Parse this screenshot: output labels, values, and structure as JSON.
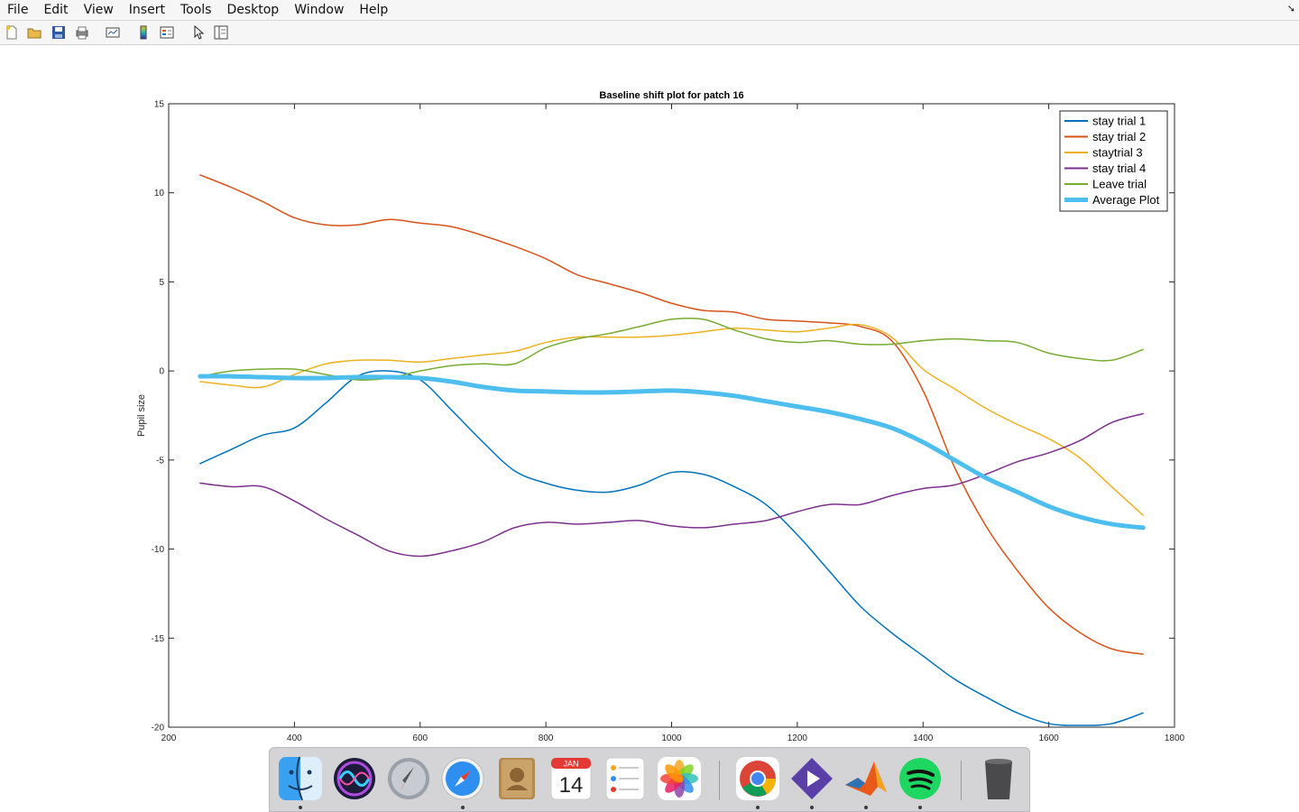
{
  "menubar": {
    "items": [
      "File",
      "Edit",
      "View",
      "Insert",
      "Tools",
      "Desktop",
      "Window",
      "Help"
    ],
    "arrow_icon": "dock-arrow-icon"
  },
  "toolbar": {
    "buttons": [
      "new-figure-icon",
      "open-file-icon",
      "save-icon",
      "print-icon",
      "link-plot-icon",
      "insert-colorbar-icon",
      "insert-legend-icon",
      "edit-plot-pointer-icon",
      "property-inspector-icon"
    ]
  },
  "chart_data": {
    "type": "line",
    "title": "Baseline shift plot for patch 16",
    "xlabel": "",
    "ylabel": "Pupil size",
    "xlim": [
      200,
      1800
    ],
    "ylim": [
      -20,
      15
    ],
    "xticks": [
      200,
      400,
      600,
      800,
      1000,
      1200,
      1400,
      1600,
      1800
    ],
    "yticks": [
      -20,
      -15,
      -10,
      -5,
      0,
      5,
      10,
      15
    ],
    "grid": false,
    "legend_position": "top-right",
    "x": [
      250,
      300,
      350,
      400,
      450,
      500,
      550,
      600,
      650,
      700,
      750,
      800,
      850,
      900,
      950,
      1000,
      1050,
      1100,
      1150,
      1200,
      1250,
      1300,
      1350,
      1400,
      1450,
      1500,
      1550,
      1600,
      1650,
      1700,
      1750
    ],
    "series": [
      {
        "name": "stay trial 1",
        "color": "#0072BD",
        "width": 1.5,
        "values": [
          -5.2,
          -4.4,
          -3.6,
          -3.2,
          -1.8,
          -0.3,
          0.0,
          -0.5,
          -2.2,
          -4.0,
          -5.6,
          -6.3,
          -6.7,
          -6.8,
          -6.4,
          -5.7,
          -5.8,
          -6.5,
          -7.5,
          -9.2,
          -11.2,
          -13.2,
          -14.7,
          -16.0,
          -17.3,
          -18.3,
          -19.2,
          -19.8,
          -19.9,
          -19.8,
          -19.2
        ]
      },
      {
        "name": "stay trial 2",
        "color": "#D95319",
        "width": 1.5,
        "values": [
          11.0,
          10.3,
          9.5,
          8.6,
          8.2,
          8.2,
          8.5,
          8.3,
          8.1,
          7.6,
          7.0,
          6.3,
          5.4,
          4.9,
          4.4,
          3.8,
          3.4,
          3.3,
          2.9,
          2.8,
          2.7,
          2.5,
          1.7,
          -1.1,
          -5.4,
          -8.7,
          -11.2,
          -13.3,
          -14.7,
          -15.6,
          -15.9
        ]
      },
      {
        "name": "staytrial 3",
        "color": "#EDB120",
        "width": 1.5,
        "values": [
          -0.6,
          -0.8,
          -0.9,
          -0.2,
          0.4,
          0.6,
          0.6,
          0.5,
          0.7,
          0.9,
          1.1,
          1.6,
          1.9,
          1.9,
          1.9,
          2.0,
          2.2,
          2.4,
          2.3,
          2.2,
          2.4,
          2.6,
          1.9,
          0.1,
          -1.0,
          -2.1,
          -3.0,
          -3.8,
          -4.9,
          -6.5,
          -8.1
        ]
      },
      {
        "name": "stay trial 4",
        "color": "#7E2F8E",
        "width": 1.5,
        "values": [
          -6.3,
          -6.5,
          -6.5,
          -7.3,
          -8.3,
          -9.2,
          -10.1,
          -10.4,
          -10.1,
          -9.6,
          -8.8,
          -8.5,
          -8.6,
          -8.5,
          -8.4,
          -8.7,
          -8.8,
          -8.6,
          -8.4,
          -7.9,
          -7.5,
          -7.5,
          -7.0,
          -6.6,
          -6.4,
          -5.8,
          -5.1,
          -4.6,
          -3.9,
          -2.9,
          -2.4
        ]
      },
      {
        "name": "Leave trial",
        "color": "#77AC30",
        "width": 1.5,
        "values": [
          -0.3,
          0.0,
          0.1,
          0.1,
          -0.2,
          -0.5,
          -0.4,
          0.0,
          0.3,
          0.4,
          0.4,
          1.3,
          1.8,
          2.1,
          2.5,
          2.9,
          2.9,
          2.3,
          1.8,
          1.6,
          1.7,
          1.5,
          1.5,
          1.7,
          1.8,
          1.7,
          1.6,
          1.0,
          0.7,
          0.6,
          1.2
        ]
      },
      {
        "name": "Average Plot",
        "color": "#4DBEEE",
        "width": 5,
        "values": [
          -0.3,
          -0.3,
          -0.35,
          -0.4,
          -0.4,
          -0.35,
          -0.35,
          -0.4,
          -0.6,
          -0.9,
          -1.1,
          -1.15,
          -1.2,
          -1.2,
          -1.15,
          -1.1,
          -1.2,
          -1.4,
          -1.7,
          -2.0,
          -2.3,
          -2.7,
          -3.2,
          -4.0,
          -5.0,
          -6.0,
          -6.8,
          -7.6,
          -8.2,
          -8.6,
          -8.8
        ]
      }
    ]
  },
  "dock": {
    "apps": [
      {
        "name": "Finder",
        "icon": "finder-icon",
        "running": true
      },
      {
        "name": "Siri",
        "icon": "siri-icon",
        "running": false
      },
      {
        "name": "Launchpad",
        "icon": "launchpad-icon",
        "running": false
      },
      {
        "name": "Safari",
        "icon": "safari-icon",
        "running": true
      },
      {
        "name": "Contacts",
        "icon": "contacts-icon",
        "running": false
      },
      {
        "name": "Calendar",
        "icon": "calendar-icon",
        "running": false,
        "month": "JAN",
        "day": "14"
      },
      {
        "name": "Reminders",
        "icon": "reminders-icon",
        "running": false
      },
      {
        "name": "Photos",
        "icon": "photos-icon",
        "running": false
      },
      {
        "name": "Chrome",
        "icon": "chrome-icon",
        "running": true
      },
      {
        "name": "Prime Video",
        "icon": "play-icon",
        "running": true
      },
      {
        "name": "MATLAB",
        "icon": "matlab-icon",
        "running": true
      },
      {
        "name": "Spotify",
        "icon": "spotify-icon",
        "running": true
      },
      {
        "name": "Trash",
        "icon": "trash-icon",
        "running": false
      }
    ]
  }
}
